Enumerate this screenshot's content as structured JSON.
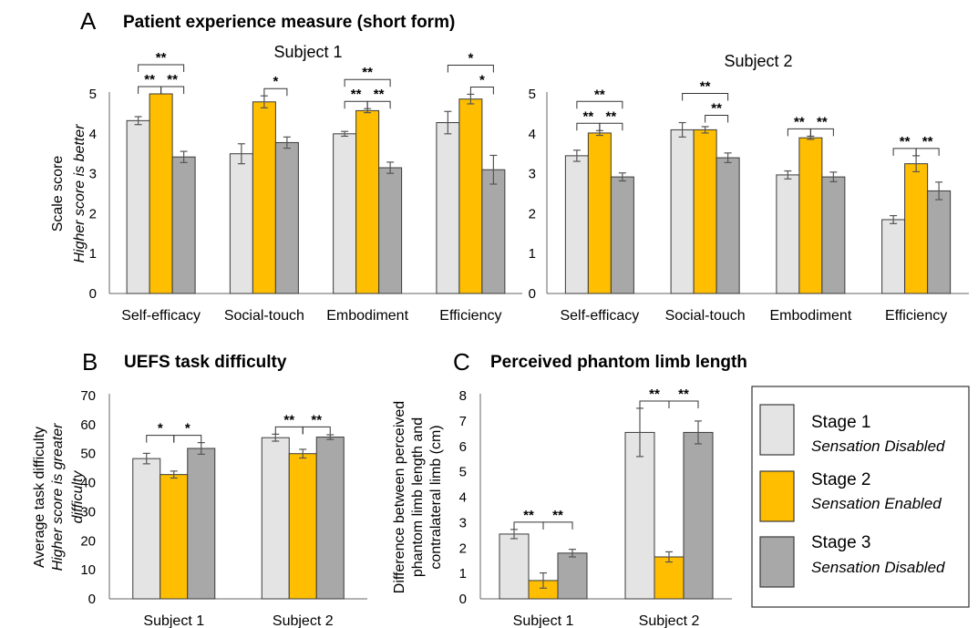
{
  "figure": {
    "panels": {
      "A": {
        "letter": "A",
        "title": "Patient experience measure (short form)"
      },
      "B": {
        "letter": "B",
        "title": "UEFS task difficulty"
      },
      "C": {
        "letter": "C",
        "title": "Perceived phantom limb length"
      }
    },
    "legend": [
      {
        "name": "Stage 1",
        "note": "Sensation Disabled",
        "color": "#e4e4e4"
      },
      {
        "name": "Stage 2",
        "note": "Sensation Enabled",
        "color": "#ffbf00"
      },
      {
        "name": "Stage 3",
        "note": "Sensation Disabled",
        "color": "#a8a8a8"
      }
    ],
    "colors": {
      "stage1": "#e4e4e4",
      "stage2": "#ffbf00",
      "stage3": "#a8a8a8",
      "bar_edge": "#3a3a3a",
      "error_bar": "#555555"
    }
  },
  "chart_data": [
    {
      "type": "bar",
      "id": "A1",
      "title": "Subject 1",
      "ylabel": [
        "Scale score",
        "Higher score is better"
      ],
      "ylim": [
        0,
        5
      ],
      "yticks": [
        0,
        1,
        2,
        3,
        4,
        5
      ],
      "categories": [
        "Self-efficacy",
        "Social-touch",
        "Embodiment",
        "Efficiency"
      ],
      "series": [
        {
          "name": "Stage 1",
          "values": [
            4.33,
            3.5,
            4.0,
            4.28
          ],
          "errors": [
            0.1,
            0.25,
            0.06,
            0.28
          ]
        },
        {
          "name": "Stage 2",
          "values": [
            5.0,
            4.8,
            4.58,
            4.87
          ],
          "errors": [
            0.0,
            0.15,
            0.05,
            0.12
          ]
        },
        {
          "name": "Stage 3",
          "values": [
            3.42,
            3.78,
            3.15,
            3.1
          ],
          "errors": [
            0.14,
            0.14,
            0.14,
            0.36
          ]
        }
      ],
      "significance": [
        [
          {
            "pair": [
              0,
              1
            ],
            "label": "**",
            "level": 1
          },
          {
            "pair": [
              1,
              2
            ],
            "label": "**",
            "level": 1
          },
          {
            "pair": [
              0,
              2
            ],
            "label": "**",
            "level": 2
          }
        ],
        [
          {
            "pair": [
              1,
              2
            ],
            "label": "*",
            "level": 1
          }
        ],
        [
          {
            "pair": [
              0,
              1
            ],
            "label": "**",
            "level": 1
          },
          {
            "pair": [
              1,
              2
            ],
            "label": "**",
            "level": 1
          },
          {
            "pair": [
              0,
              2
            ],
            "label": "**",
            "level": 2
          }
        ],
        [
          {
            "pair": [
              1,
              2
            ],
            "label": "*",
            "level": 1
          },
          {
            "pair": [
              0,
              2
            ],
            "label": "*",
            "level": 2
          }
        ]
      ]
    },
    {
      "type": "bar",
      "id": "A2",
      "title": "Subject 2",
      "ylabel": [
        "",
        ""
      ],
      "ylim": [
        0,
        5
      ],
      "yticks": [
        0,
        1,
        2,
        3,
        4,
        5
      ],
      "categories": [
        "Self-efficacy",
        "Social-touch",
        "Embodiment",
        "Efficiency"
      ],
      "series": [
        {
          "name": "Stage 1",
          "values": [
            3.45,
            4.1,
            2.97,
            1.85
          ],
          "errors": [
            0.14,
            0.18,
            0.1,
            0.1
          ]
        },
        {
          "name": "Stage 2",
          "values": [
            4.02,
            4.1,
            3.9,
            3.25
          ],
          "errors": [
            0.06,
            0.08,
            0.04,
            0.2
          ]
        },
        {
          "name": "Stage 3",
          "values": [
            2.92,
            3.4,
            2.92,
            2.57
          ],
          "errors": [
            0.1,
            0.12,
            0.12,
            0.22
          ]
        }
      ],
      "significance": [
        [
          {
            "pair": [
              0,
              1
            ],
            "label": "**",
            "level": 1
          },
          {
            "pair": [
              1,
              2
            ],
            "label": "**",
            "level": 1
          },
          {
            "pair": [
              0,
              2
            ],
            "label": "**",
            "level": 2
          }
        ],
        [
          {
            "pair": [
              1,
              2
            ],
            "label": "**",
            "level": 1
          },
          {
            "pair": [
              0,
              2
            ],
            "label": "**",
            "level": 2
          }
        ],
        [
          {
            "pair": [
              0,
              1
            ],
            "label": "**",
            "level": 1
          },
          {
            "pair": [
              1,
              2
            ],
            "label": "**",
            "level": 1
          }
        ],
        [
          {
            "pair": [
              0,
              1
            ],
            "label": "**",
            "level": 1
          },
          {
            "pair": [
              1,
              2
            ],
            "label": "**",
            "level": 1
          }
        ]
      ]
    },
    {
      "type": "bar",
      "id": "B",
      "title": "",
      "ylabel": [
        "Average task difficulty",
        "Higher score  is greater",
        "difficulty"
      ],
      "ylim": [
        0,
        70
      ],
      "yticks": [
        0,
        10,
        20,
        30,
        40,
        50,
        60,
        70
      ],
      "categories": [
        "Subject 1",
        "Subject 2"
      ],
      "series": [
        {
          "name": "Stage 1",
          "values": [
            48.3,
            55.5
          ],
          "errors": [
            1.8,
            1.2
          ]
        },
        {
          "name": "Stage 2",
          "values": [
            42.8,
            50.0
          ],
          "errors": [
            1.2,
            1.5
          ]
        },
        {
          "name": "Stage 3",
          "values": [
            51.8,
            55.7
          ],
          "errors": [
            2.0,
            0.8
          ]
        }
      ],
      "significance": [
        [
          {
            "pair": [
              0,
              1
            ],
            "label": "*",
            "level": 1
          },
          {
            "pair": [
              1,
              2
            ],
            "label": "*",
            "level": 1
          }
        ],
        [
          {
            "pair": [
              0,
              1
            ],
            "label": "**",
            "level": 1
          },
          {
            "pair": [
              1,
              2
            ],
            "label": "**",
            "level": 1
          }
        ]
      ]
    },
    {
      "type": "bar",
      "id": "C",
      "title": "",
      "ylabel": [
        "Difference between perceived",
        "phantom limb length and",
        "contralateral limb (cm)"
      ],
      "ylim": [
        0,
        8
      ],
      "yticks": [
        0,
        1,
        2,
        3,
        4,
        5,
        6,
        7,
        8
      ],
      "categories": [
        "Subject 1",
        "Subject 2"
      ],
      "series": [
        {
          "name": "Stage 1",
          "values": [
            2.55,
            6.55
          ],
          "errors": [
            0.18,
            0.95
          ]
        },
        {
          "name": "Stage 2",
          "values": [
            0.72,
            1.65
          ],
          "errors": [
            0.3,
            0.2
          ]
        },
        {
          "name": "Stage 3",
          "values": [
            1.8,
            6.55
          ],
          "errors": [
            0.15,
            0.45
          ]
        }
      ],
      "significance": [
        [
          {
            "pair": [
              0,
              1
            ],
            "label": "**",
            "level": 1
          },
          {
            "pair": [
              1,
              2
            ],
            "label": "**",
            "level": 1
          }
        ],
        [
          {
            "pair": [
              0,
              1
            ],
            "label": "**",
            "level": 1
          },
          {
            "pair": [
              1,
              2
            ],
            "label": "**",
            "level": 1
          }
        ]
      ]
    }
  ]
}
